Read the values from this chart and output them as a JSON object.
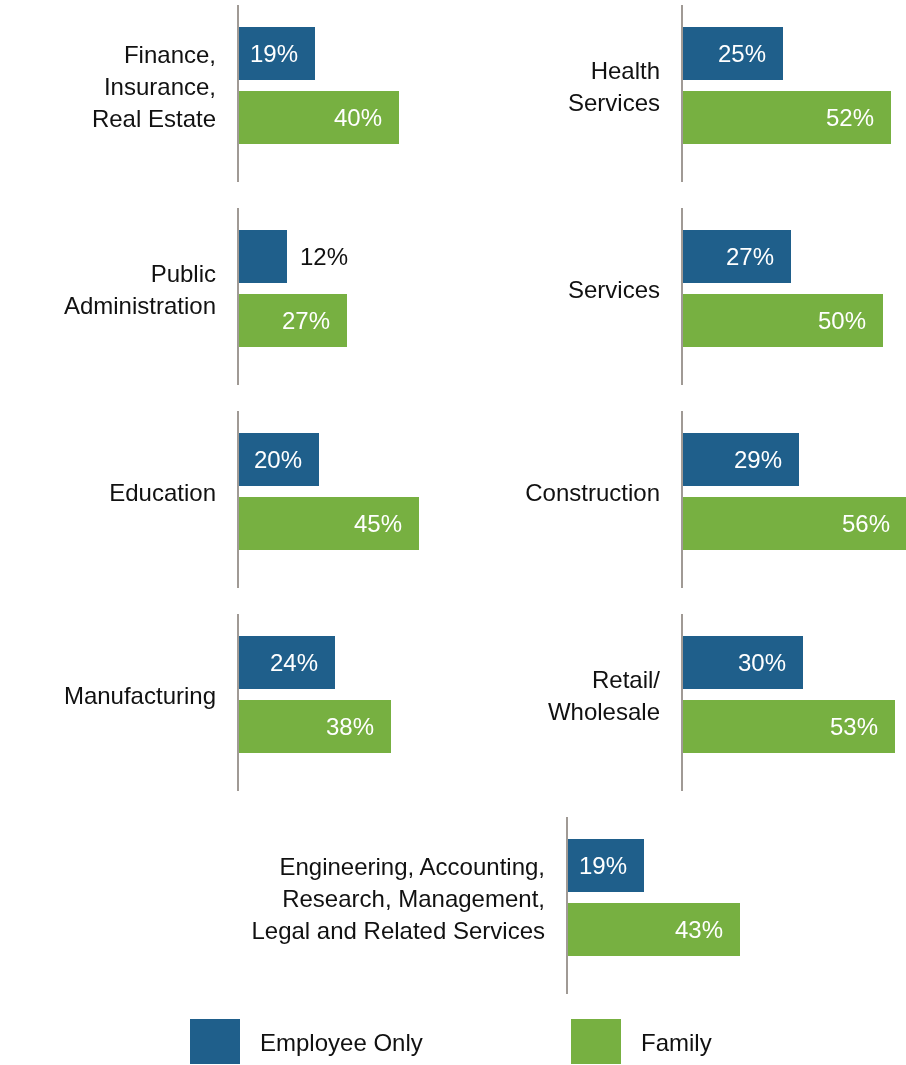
{
  "chart_data": [
    {
      "type": "bar",
      "orientation": "horizontal",
      "categories": [
        "Finance,\nInsurance,\nReal Estate"
      ],
      "series": [
        {
          "color": "#1f5f8b",
          "values": [
            19
          ],
          "value_labels": [
            "19%"
          ]
        },
        {
          "color": "#77b041",
          "values": [
            40
          ],
          "value_labels": [
            "40%"
          ]
        }
      ]
    },
    {
      "type": "bar",
      "orientation": "horizontal",
      "categories": [
        "Health\nServices"
      ],
      "series": [
        {
          "color": "#1f5f8b",
          "values": [
            25
          ],
          "value_labels": [
            "25%"
          ]
        },
        {
          "color": "#77b041",
          "values": [
            52
          ],
          "value_labels": [
            "52%"
          ]
        }
      ]
    },
    {
      "type": "bar",
      "orientation": "horizontal",
      "categories": [
        "Public\nAdministration"
      ],
      "series": [
        {
          "color": "#1f5f8b",
          "values": [
            12
          ],
          "value_labels": [
            "12%"
          ]
        },
        {
          "color": "#77b041",
          "values": [
            27
          ],
          "value_labels": [
            "27%"
          ]
        }
      ]
    },
    {
      "type": "bar",
      "orientation": "horizontal",
      "categories": [
        "Services"
      ],
      "series": [
        {
          "color": "#1f5f8b",
          "values": [
            27
          ],
          "value_labels": [
            "27%"
          ]
        },
        {
          "color": "#77b041",
          "values": [
            50
          ],
          "value_labels": [
            "50%"
          ]
        }
      ]
    },
    {
      "type": "bar",
      "orientation": "horizontal",
      "categories": [
        "Education"
      ],
      "series": [
        {
          "color": "#1f5f8b",
          "values": [
            20
          ],
          "value_labels": [
            "20%"
          ]
        },
        {
          "color": "#77b041",
          "values": [
            45
          ],
          "value_labels": [
            "45%"
          ]
        }
      ]
    },
    {
      "type": "bar",
      "orientation": "horizontal",
      "categories": [
        "Construction"
      ],
      "series": [
        {
          "color": "#1f5f8b",
          "values": [
            29
          ],
          "value_labels": [
            "29%"
          ]
        },
        {
          "color": "#77b041",
          "values": [
            56
          ],
          "value_labels": [
            "56%"
          ]
        }
      ]
    },
    {
      "type": "bar",
      "orientation": "horizontal",
      "categories": [
        "Manufacturing"
      ],
      "series": [
        {
          "color": "#1f5f8b",
          "values": [
            24
          ],
          "value_labels": [
            "24%"
          ]
        },
        {
          "color": "#77b041",
          "values": [
            38
          ],
          "value_labels": [
            "38%"
          ]
        }
      ]
    },
    {
      "type": "bar",
      "orientation": "horizontal",
      "categories": [
        "Retail/\nWholesale"
      ],
      "series": [
        {
          "color": "#1f5f8b",
          "values": [
            30
          ],
          "value_labels": [
            "30%"
          ]
        },
        {
          "color": "#77b041",
          "values": [
            53
          ],
          "value_labels": [
            "53%"
          ]
        }
      ]
    },
    {
      "type": "bar",
      "orientation": "horizontal",
      "legend": "bottom",
      "categories": [
        "Engineering, Accounting,\nResearch, Management,\nLegal and Related Services"
      ],
      "series": [
        {
          "name": "Employee Only",
          "color": "#1f5f8b",
          "values": [
            19
          ],
          "value_labels": [
            "19%"
          ]
        },
        {
          "name": "Family",
          "color": "#77b041",
          "values": [
            43
          ],
          "value_labels": [
            "43%"
          ]
        }
      ]
    }
  ]
}
